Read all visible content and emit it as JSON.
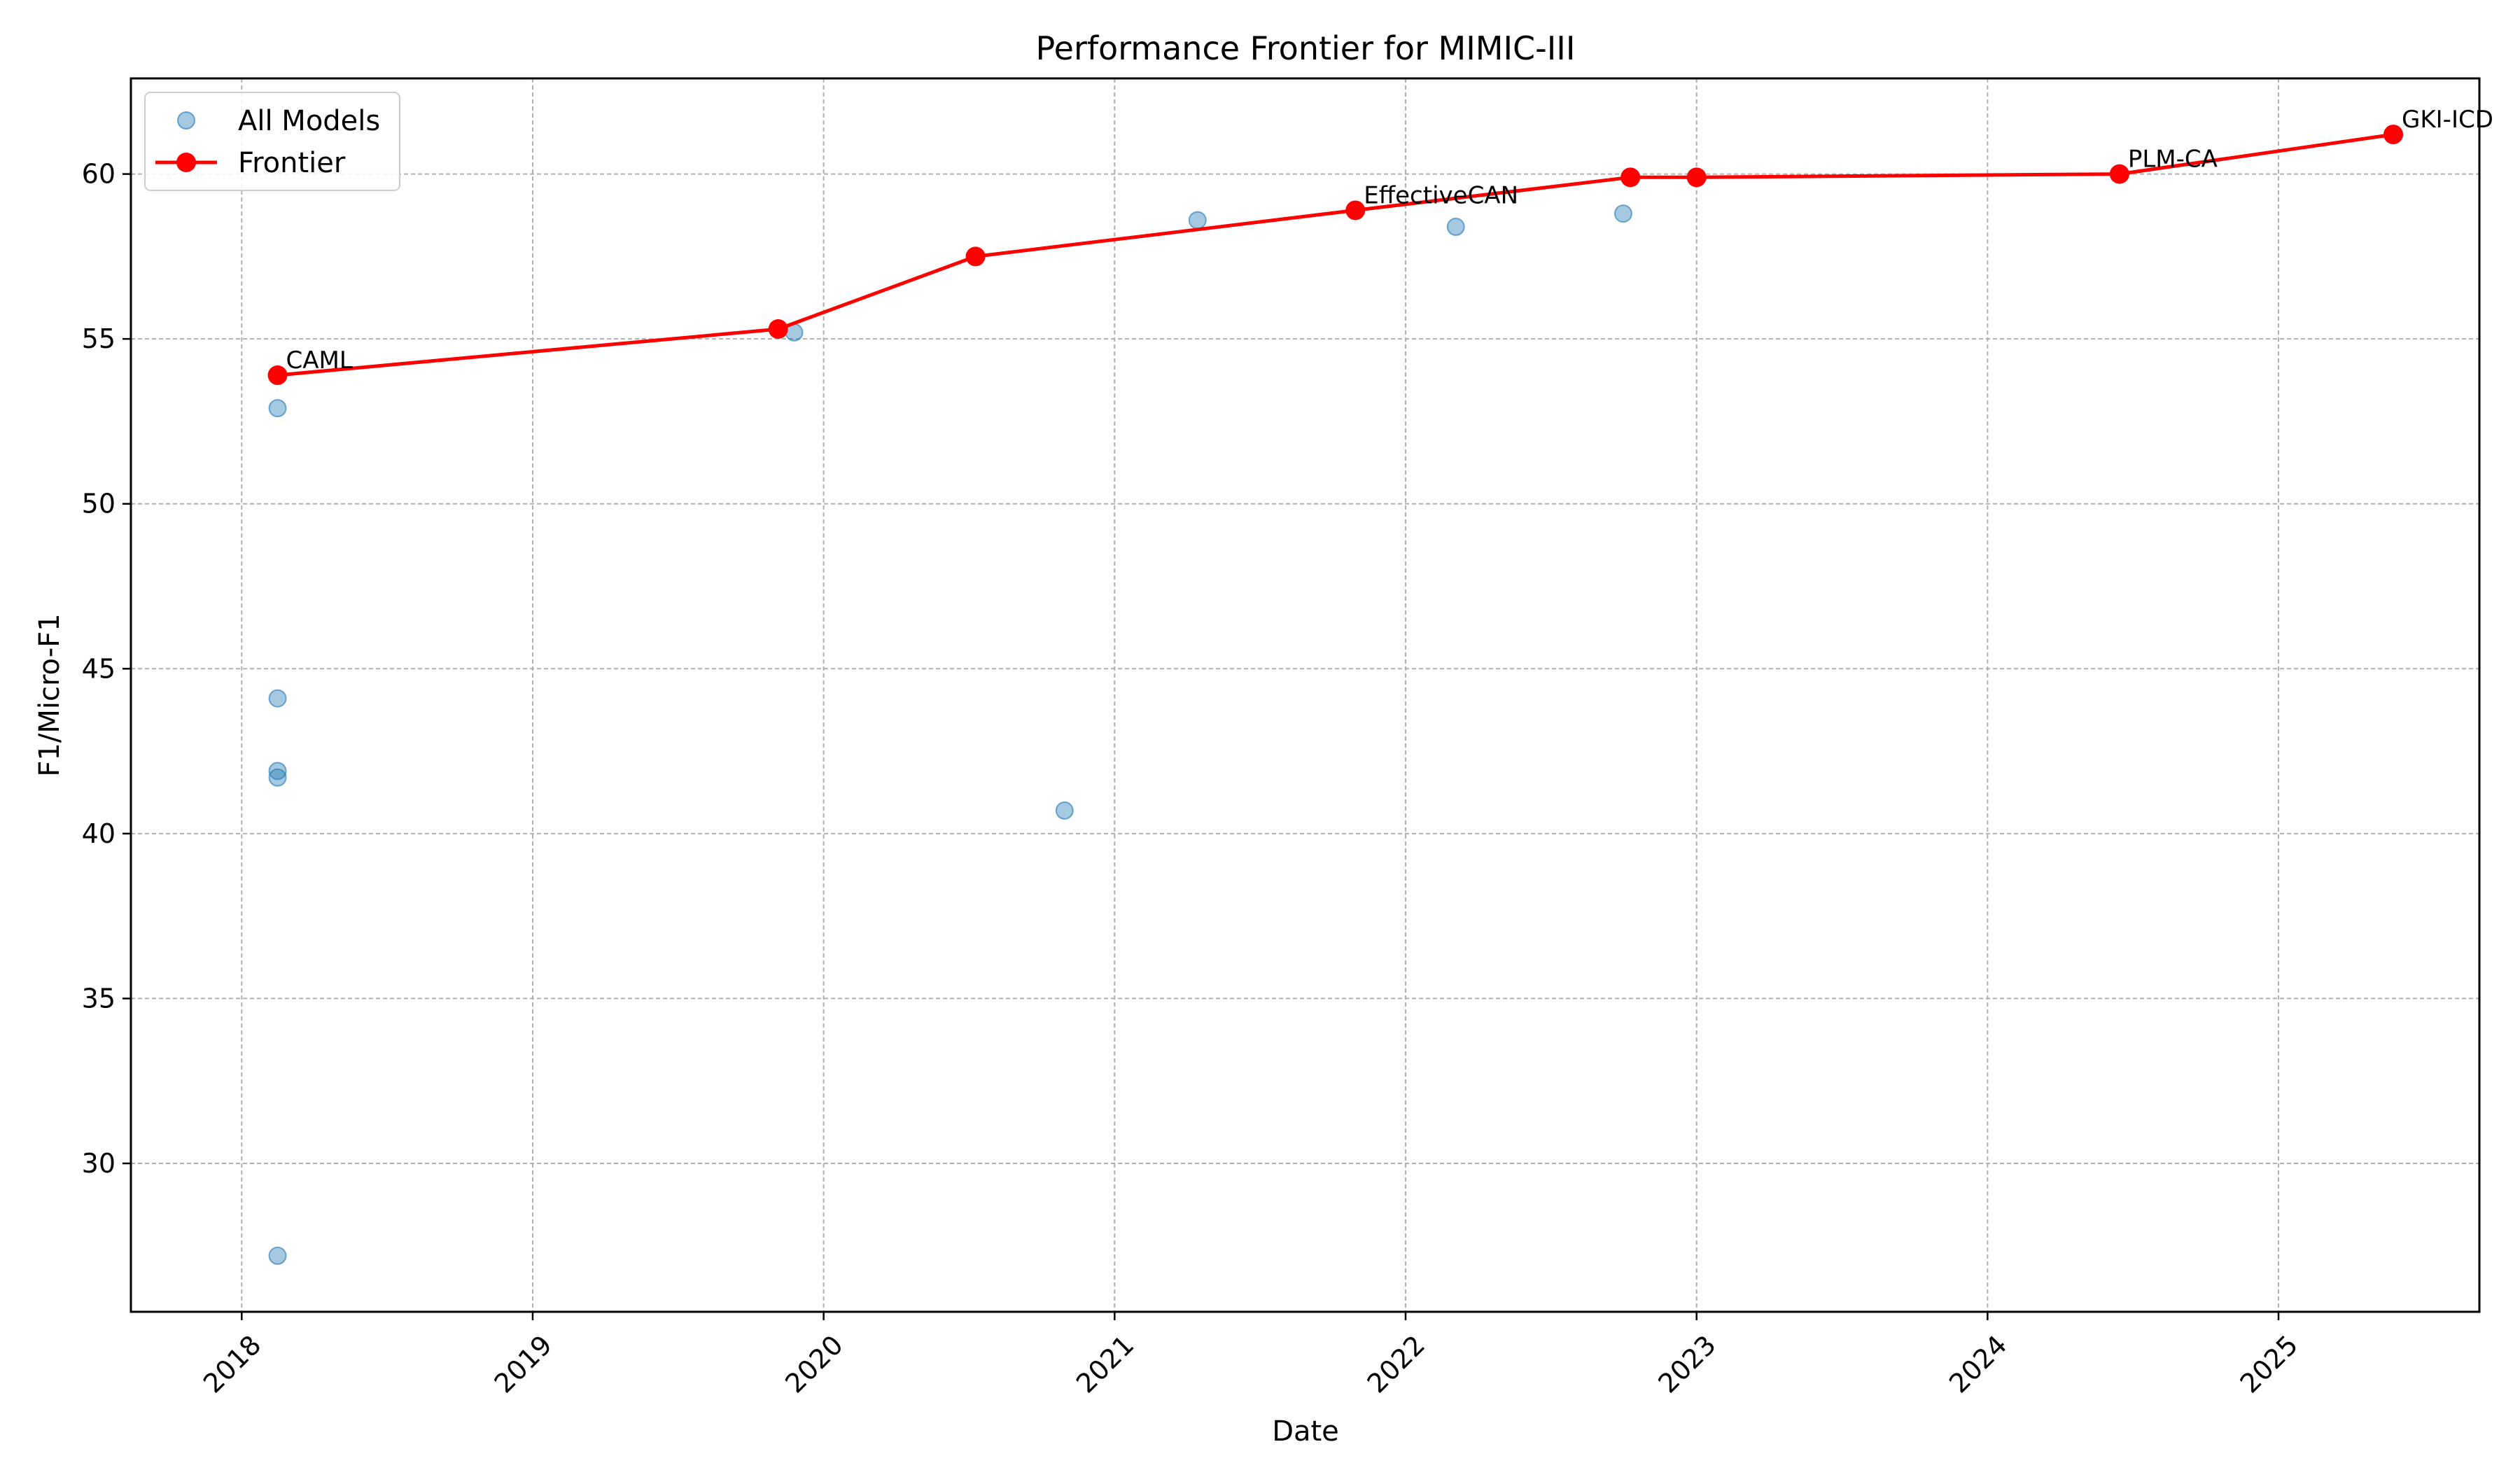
{
  "chart_data": {
    "type": "scatter",
    "title": "Performance Frontier for MIMIC-III",
    "xlabel": "Date",
    "ylabel": "F1/Micro-F1",
    "x_axis_type": "date",
    "xlim": [
      "2017-08-15",
      "2025-09-10"
    ],
    "ylim": [
      25.5,
      62.9
    ],
    "x_ticks": [
      "2018",
      "2019",
      "2020",
      "2021",
      "2022",
      "2023",
      "2024",
      "2025"
    ],
    "y_ticks": [
      30,
      35,
      40,
      45,
      50,
      55,
      60
    ],
    "grid": true,
    "legend_position": "upper-left",
    "series": [
      {
        "name": "All Models",
        "kind": "scatter",
        "color": "#1f77b4",
        "points": [
          {
            "x": "2018-02-15",
            "y": 52.9
          },
          {
            "x": "2018-02-15",
            "y": 44.1
          },
          {
            "x": "2018-02-15",
            "y": 41.9
          },
          {
            "x": "2018-02-15",
            "y": 41.7
          },
          {
            "x": "2018-02-15",
            "y": 27.2
          },
          {
            "x": "2019-11-25",
            "y": 55.2
          },
          {
            "x": "2020-10-30",
            "y": 40.7
          },
          {
            "x": "2021-04-15",
            "y": 58.6
          },
          {
            "x": "2022-03-05",
            "y": 58.4
          },
          {
            "x": "2022-10-01",
            "y": 58.8
          }
        ]
      },
      {
        "name": "Frontier",
        "kind": "line",
        "color": "#ff0000",
        "points": [
          {
            "x": "2018-02-15",
            "y": 53.9,
            "label": "CAML"
          },
          {
            "x": "2019-11-05",
            "y": 55.3
          },
          {
            "x": "2020-07-10",
            "y": 57.5
          },
          {
            "x": "2021-10-30",
            "y": 58.9,
            "label": "EffectiveCAN"
          },
          {
            "x": "2022-10-10",
            "y": 59.9
          },
          {
            "x": "2023-01-01",
            "y": 59.9
          },
          {
            "x": "2024-06-15",
            "y": 60.0,
            "label": "PLM-CA"
          },
          {
            "x": "2025-05-25",
            "y": 61.2,
            "label": "GKI-ICD"
          }
        ]
      }
    ]
  }
}
